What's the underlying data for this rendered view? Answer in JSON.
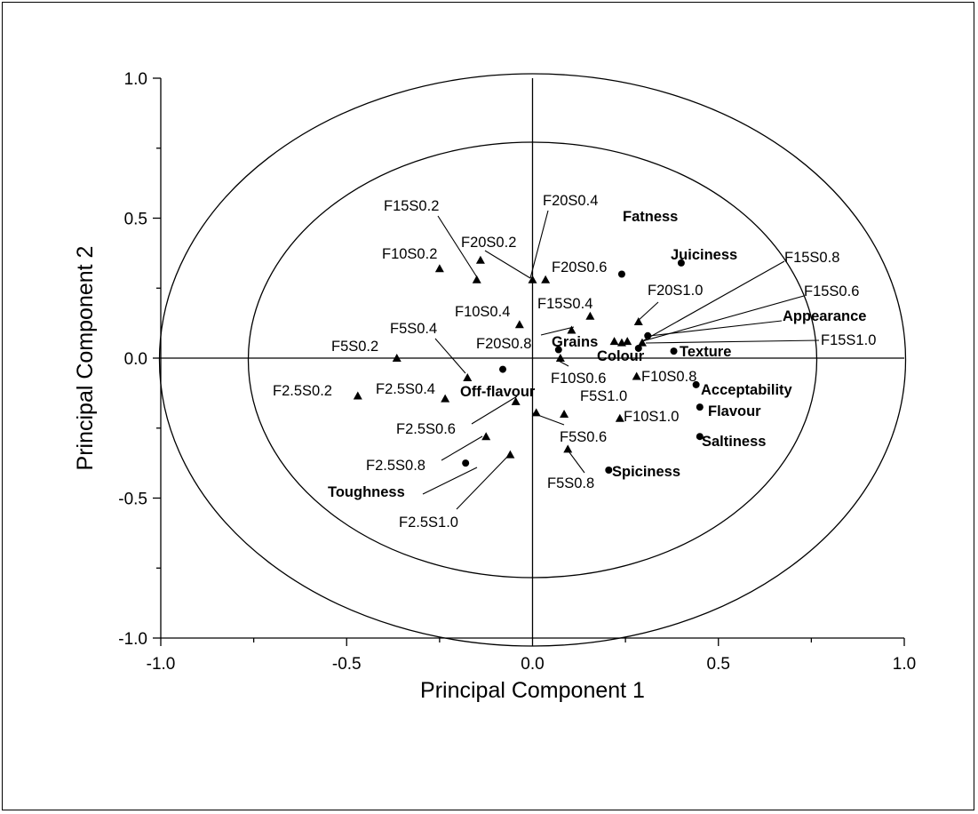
{
  "chart_data": {
    "type": "scatter",
    "xlabel": "Principal Component 1",
    "ylabel": "Principal Component 2",
    "xlim": [
      -1.0,
      1.0
    ],
    "ylim": [
      -1.0,
      1.0
    ],
    "xticks": [
      "-1.0",
      "-0.5",
      "0.0",
      "0.5",
      "1.0"
    ],
    "yticks": [
      "1.0",
      "0.5",
      "0.0",
      "-0.5",
      "-1.0"
    ],
    "grid": false,
    "legend": "none",
    "correlation_circles": [
      1.0,
      0.75
    ],
    "series": [
      {
        "marker": "triangle",
        "points": [
          {
            "label": "F15S0.2",
            "x": -0.15,
            "y": 0.28
          },
          {
            "label": "F10S0.2",
            "x": -0.25,
            "y": 0.32
          },
          {
            "label": "F20S0.2",
            "x": -0.14,
            "y": 0.35
          },
          {
            "label": "F20S0.4",
            "x": 0.0,
            "y": 0.28
          },
          {
            "label": "F20S0.6",
            "x": 0.035,
            "y": 0.28
          },
          {
            "label": "F10S0.4",
            "x": -0.035,
            "y": 0.12
          },
          {
            "label": "F15S0.4",
            "x": 0.155,
            "y": 0.15
          },
          {
            "label": "F20S0.8",
            "x": 0.105,
            "y": 0.1
          },
          {
            "label": "F5S0.4",
            "x": -0.175,
            "y": -0.07
          },
          {
            "label": "F5S0.2",
            "x": -0.365,
            "y": 0.0
          },
          {
            "label": "F2.5S0.2",
            "x": -0.47,
            "y": -0.135
          },
          {
            "label": "F2.5S0.4",
            "x": -0.235,
            "y": -0.145
          },
          {
            "label": "F10S0.6",
            "x": 0.075,
            "y": 0.0
          },
          {
            "label": "F5S1.0",
            "x": 0.085,
            "y": -0.2
          },
          {
            "label": "F2.5S0.6",
            "x": -0.045,
            "y": -0.155
          },
          {
            "label": "F5S0.6",
            "x": 0.01,
            "y": -0.195
          },
          {
            "label": "F2.5S0.8",
            "x": -0.125,
            "y": -0.28
          },
          {
            "label": "F2.5S1.0",
            "x": -0.06,
            "y": -0.345
          },
          {
            "label": "F5S0.8",
            "x": 0.095,
            "y": -0.325
          },
          {
            "label": "F20S1.0",
            "x": 0.285,
            "y": 0.13
          },
          {
            "label": "F15S0.8",
            "x": 0.255,
            "y": 0.06
          },
          {
            "label": "F15S0.6",
            "x": 0.24,
            "y": 0.055
          },
          {
            "label": "F15S1.0",
            "x": 0.295,
            "y": 0.055
          },
          {
            "label": "F10S0.8",
            "x": 0.28,
            "y": -0.065
          },
          {
            "label": "F10S1.0",
            "x": 0.235,
            "y": -0.215
          },
          {
            "label": "",
            "x": 0.22,
            "y": 0.06
          }
        ]
      },
      {
        "marker": "circle",
        "points": [
          {
            "label": "Fatness",
            "x": 0.24,
            "y": 0.3
          },
          {
            "label": "Juiciness",
            "x": 0.4,
            "y": 0.34
          },
          {
            "label": "Appearance",
            "x": 0.31,
            "y": 0.08
          },
          {
            "label": "Grains",
            "x": 0.07,
            "y": 0.03
          },
          {
            "label": "Colour",
            "x": 0.285,
            "y": 0.035
          },
          {
            "label": "Texture",
            "x": 0.38,
            "y": 0.025
          },
          {
            "label": "Off-flavour",
            "x": -0.08,
            "y": -0.04
          },
          {
            "label": "Acceptability",
            "x": 0.44,
            "y": -0.095
          },
          {
            "label": "Flavour",
            "x": 0.45,
            "y": -0.175
          },
          {
            "label": "Saltiness",
            "x": 0.45,
            "y": -0.28
          },
          {
            "label": "Spiciness",
            "x": 0.205,
            "y": -0.4
          },
          {
            "label": "Toughness",
            "x": -0.18,
            "y": -0.375
          }
        ]
      }
    ]
  }
}
